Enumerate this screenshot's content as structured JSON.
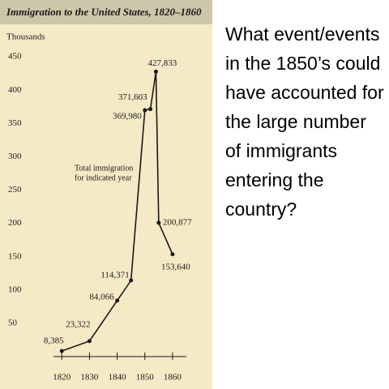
{
  "chart_data": {
    "type": "line",
    "title": "Immigration to the United States, 1820–1860",
    "ylabel": "Thousands",
    "annotation": [
      "Total immigration",
      "for indicated year"
    ],
    "x": [
      1820,
      1830,
      1840,
      1845,
      1850,
      1852,
      1854,
      1855,
      1860
    ],
    "series": [
      {
        "name": "Total immigration",
        "color": "#1a1a1a",
        "values": [
          8.385,
          23.322,
          84.066,
          114.371,
          369.98,
          371.603,
          427.833,
          200.877,
          153.64
        ],
        "value_labels": [
          "8,385",
          "23,322",
          "84,066",
          "114,371",
          "369,980",
          "371,603",
          "427,833",
          "200,877",
          "153,640"
        ]
      }
    ],
    "xlim": [
      1817,
      1865
    ],
    "xticks": [
      1820,
      1830,
      1840,
      1850,
      1860
    ],
    "ylim": [
      0,
      460
    ],
    "yticks": [
      50,
      100,
      150,
      200,
      250,
      300,
      350,
      400,
      450
    ]
  },
  "question": "What event/events in the 1850’s could have accounted for the large number of immigrants entering the country?"
}
